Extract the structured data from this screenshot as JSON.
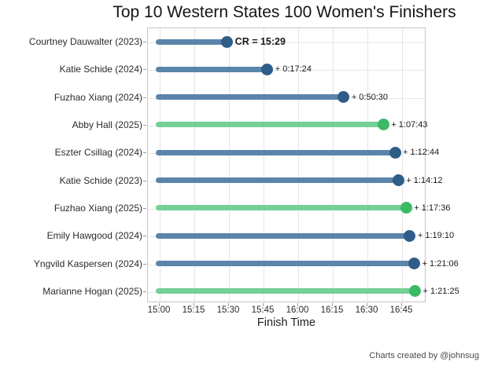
{
  "title": "Top 10 Western States 100 Women's Finishers",
  "axis": {
    "xlabel": "Finish Time"
  },
  "caption": "Charts created by @johnsug",
  "colors": {
    "blue_line": "#5b84ab",
    "blue_dot": "#2f5d89",
    "green_line": "#74d096",
    "green_dot": "#3aba65",
    "grid": "#e4e4e4",
    "border": "#c6c6c6"
  },
  "chart_data": {
    "type": "lollipop",
    "title": "Top 10 Western States 100 Women's Finishers",
    "xlabel": "Finish Time",
    "x_axis": {
      "ticks": [
        "15:00",
        "15:15",
        "15:30",
        "15:45",
        "16:00",
        "16:15",
        "16:30",
        "16:45"
      ],
      "tick_interval_minutes": 15,
      "range_minutes_after_1500": [
        0,
        113
      ],
      "grid": true
    },
    "baseline": "15:00",
    "entries": [
      {
        "label": "Courtney Dauwalter (2023)",
        "annotation": "CR = 15:29",
        "delta_from_cr": null,
        "minutes_after_1500": 29.55,
        "group": "blue",
        "bold": true
      },
      {
        "label": "Katie Schide (2024)",
        "annotation": "+ 0:17:24",
        "delta_from_cr": "0:17:24",
        "minutes_after_1500": 46.95,
        "group": "blue",
        "bold": false
      },
      {
        "label": "Fuzhao Xiang (2024)",
        "annotation": "+ 0:50:30",
        "delta_from_cr": "0:50:30",
        "minutes_after_1500": 80.05,
        "group": "blue",
        "bold": false
      },
      {
        "label": "Abby Hall (2025)",
        "annotation": "+ 1:07:43",
        "delta_from_cr": "1:07:43",
        "minutes_after_1500": 97.27,
        "group": "green",
        "bold": false
      },
      {
        "label": "Eszter Csillag (2024)",
        "annotation": "+ 1:12:44",
        "delta_from_cr": "1:12:44",
        "minutes_after_1500": 102.28,
        "group": "blue",
        "bold": false
      },
      {
        "label": "Katie Schide (2023)",
        "annotation": "+ 1:14:12",
        "delta_from_cr": "1:14:12",
        "minutes_after_1500": 103.75,
        "group": "blue",
        "bold": false
      },
      {
        "label": "Fuzhao Xiang (2025)",
        "annotation": "+ 1:17:36",
        "delta_from_cr": "1:17:36",
        "minutes_after_1500": 107.15,
        "group": "green",
        "bold": false
      },
      {
        "label": "Emily Hawgood (2024)",
        "annotation": "+ 1:19:10",
        "delta_from_cr": "1:19:10",
        "minutes_after_1500": 108.72,
        "group": "blue",
        "bold": false
      },
      {
        "label": "Yngvild Kaspersen (2024)",
        "annotation": "+ 1:21:06",
        "delta_from_cr": "1:21:06",
        "minutes_after_1500": 110.65,
        "group": "blue",
        "bold": false
      },
      {
        "label": "Marianne Hogan (2025)",
        "annotation": "+ 1:21:25",
        "delta_from_cr": "1:21:25",
        "minutes_after_1500": 110.97,
        "group": "green",
        "bold": false
      }
    ],
    "legend": null
  }
}
